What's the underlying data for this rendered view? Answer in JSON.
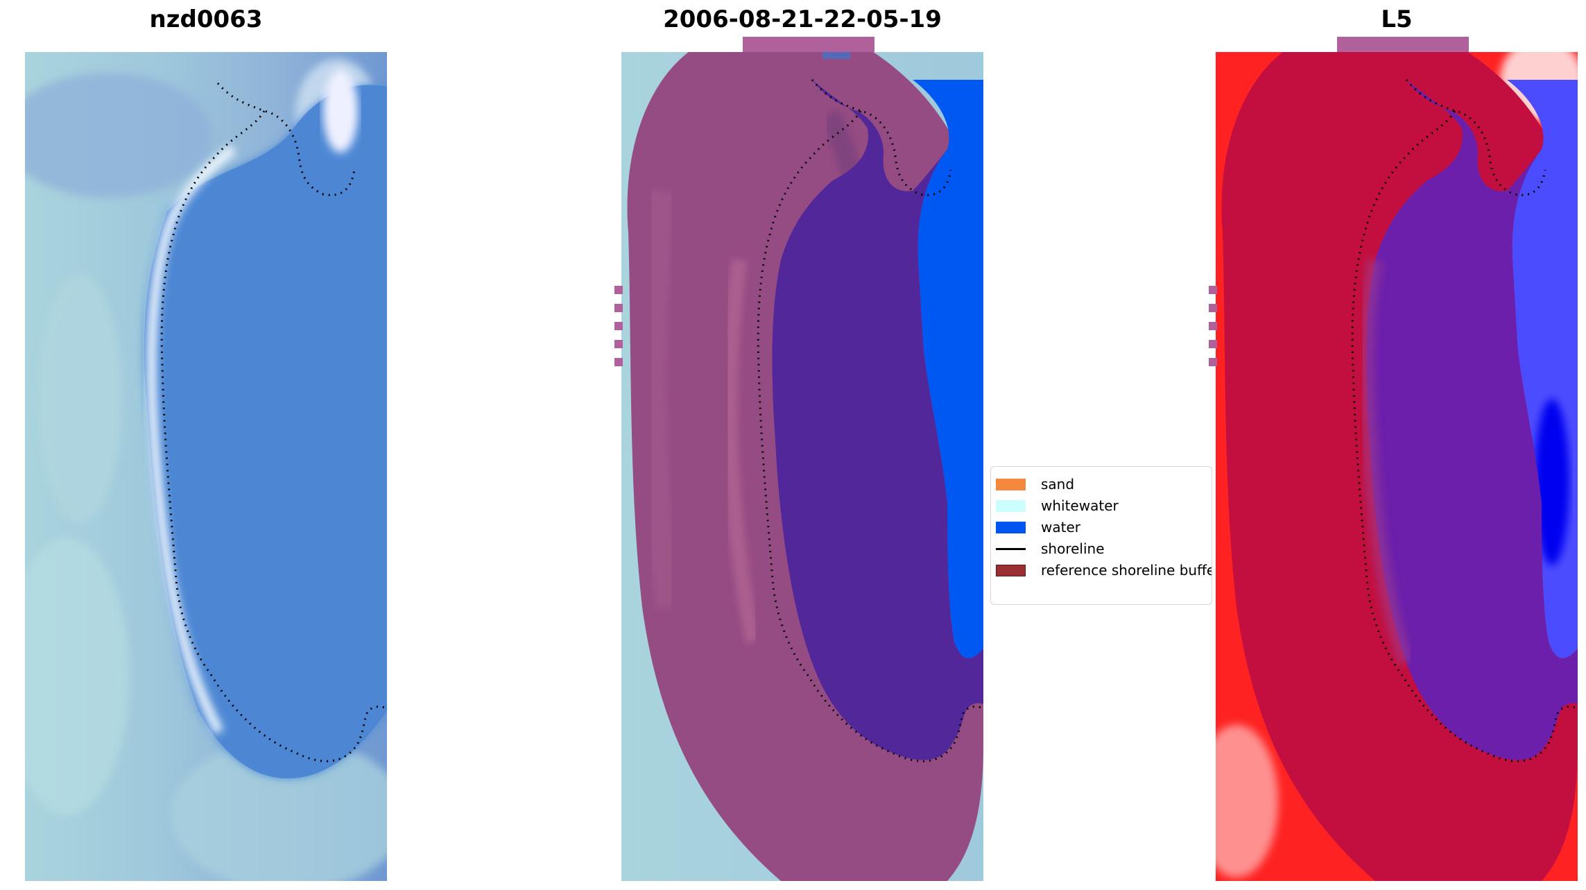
{
  "panels": [
    {
      "title": "nzd0063",
      "view": "rgb-image"
    },
    {
      "title": "2006-08-21-22-05-19",
      "view": "classified-overlay"
    },
    {
      "title": "L5",
      "view": "index-map"
    }
  ],
  "legend": {
    "items": [
      {
        "label": "sand",
        "kind": "patch",
        "color": "#f4883c"
      },
      {
        "label": "whitewater",
        "kind": "patch",
        "color": "#ccffff"
      },
      {
        "label": "water",
        "kind": "patch",
        "color": "#0055f0"
      },
      {
        "label": "shoreline",
        "kind": "line",
        "color": "#000000"
      },
      {
        "label": "reference shoreline buffer",
        "kind": "patch",
        "color": "#9a2f33"
      }
    ]
  }
}
